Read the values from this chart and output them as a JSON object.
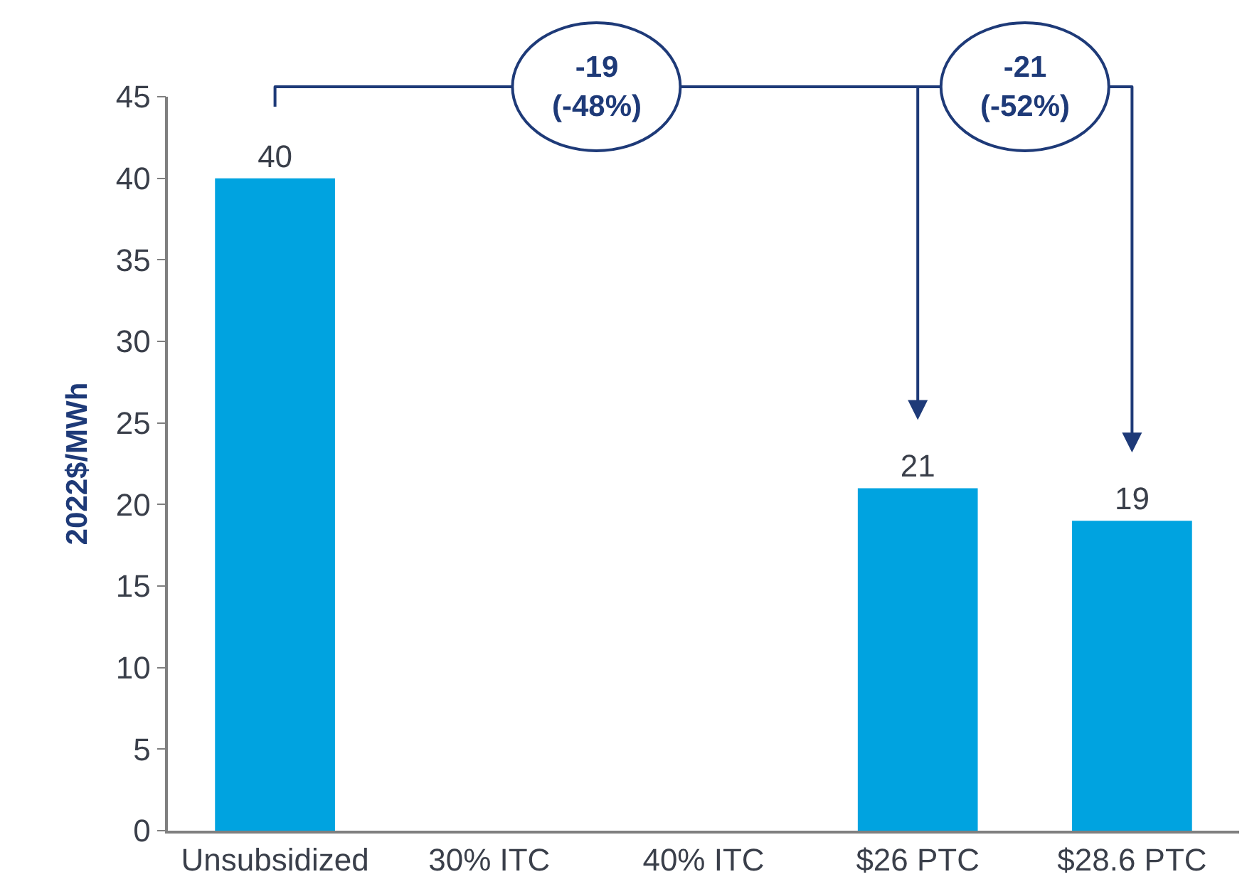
{
  "chart_data": {
    "type": "bar",
    "ylabel": "2022$/MWh",
    "categories": [
      "Unsubsidized",
      "30% ITC",
      "40% ITC",
      "$26 PTC",
      "$28.6 PTC"
    ],
    "values": [
      40,
      null,
      null,
      21,
      19
    ],
    "color": "#00a3e0",
    "ylim": [
      0,
      45
    ],
    "yticks": [
      0,
      5,
      10,
      15,
      20,
      25,
      30,
      35,
      40,
      45
    ],
    "data_labels": true,
    "annotations": [
      "-19\n(-48%)",
      "-21\n(-52%)"
    ]
  }
}
